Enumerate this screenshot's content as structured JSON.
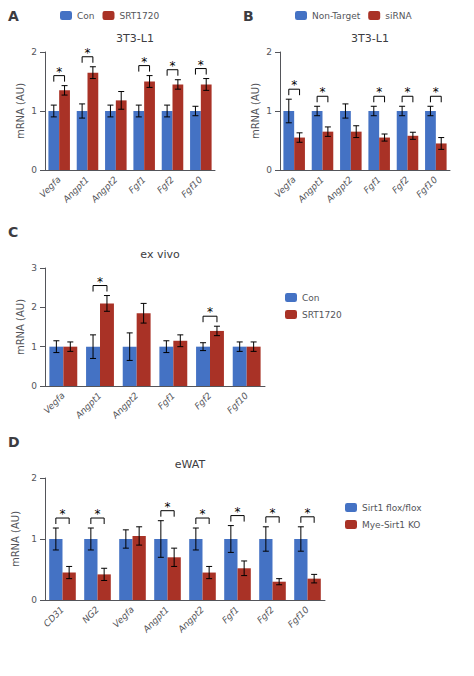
{
  "chart_data": [
    {
      "type": "bar",
      "panel": "A",
      "title": "3T3-L1",
      "categories": [
        "Vegfa",
        "Angpt1",
        "Angpt2",
        "Fgf1",
        "Fgf2",
        "Fgf10"
      ],
      "series": [
        {
          "name": "Con",
          "color": "#4472C4",
          "values": [
            1.0,
            1.0,
            1.0,
            1.0,
            1.0,
            1.0
          ],
          "errors": [
            0.1,
            0.12,
            0.1,
            0.1,
            0.1,
            0.08
          ]
        },
        {
          "name": "SRT1720",
          "color": "#A93226",
          "values": [
            1.35,
            1.65,
            1.18,
            1.5,
            1.45,
            1.45
          ],
          "errors": [
            0.08,
            0.1,
            0.15,
            0.1,
            0.08,
            0.1
          ]
        }
      ],
      "ylim": [
        0,
        2
      ],
      "yticks": [
        0,
        1,
        2
      ],
      "ylabel": "mRNA (AU)",
      "annotations": [
        {
          "category": "Vegfa",
          "text": "*"
        },
        {
          "category": "Angpt1",
          "text": "*"
        },
        {
          "category": "Fgf1",
          "text": "*"
        },
        {
          "category": "Fgf2",
          "text": "*"
        },
        {
          "category": "Fgf10",
          "text": "*"
        }
      ],
      "grid": false,
      "legend": "top"
    },
    {
      "type": "bar",
      "panel": "B",
      "title": "3T3-L1",
      "categories": [
        "Vegfa",
        "Angpt1",
        "Angpt2",
        "Fgf1",
        "Fgf2",
        "Fgf10"
      ],
      "series": [
        {
          "name": "Non-Target",
          "color": "#4472C4",
          "values": [
            1.0,
            1.0,
            1.0,
            1.0,
            1.0,
            1.0
          ],
          "errors": [
            0.2,
            0.08,
            0.12,
            0.08,
            0.08,
            0.08
          ]
        },
        {
          "name": "siRNA",
          "color": "#A93226",
          "values": [
            0.55,
            0.65,
            0.65,
            0.55,
            0.58,
            0.45
          ],
          "errors": [
            0.08,
            0.08,
            0.1,
            0.06,
            0.06,
            0.1
          ]
        }
      ],
      "ylim": [
        0,
        2
      ],
      "yticks": [
        0,
        1,
        2
      ],
      "ylabel": "mRNA (AU)",
      "annotations": [
        {
          "category": "Vegfa",
          "text": "*"
        },
        {
          "category": "Angpt1",
          "text": "*"
        },
        {
          "category": "Fgf1",
          "text": "*"
        },
        {
          "category": "Fgf2",
          "text": "*"
        },
        {
          "category": "Fgf10",
          "text": "*"
        }
      ],
      "grid": false,
      "legend": "top"
    },
    {
      "type": "bar",
      "panel": "C",
      "title": "ex vivo",
      "categories": [
        "Vegfa",
        "Angpt1",
        "Angpt2",
        "Fgf1",
        "Fgf2",
        "Fgf10"
      ],
      "series": [
        {
          "name": "Con",
          "color": "#4472C4",
          "values": [
            1.0,
            1.0,
            1.0,
            1.0,
            1.0,
            1.0
          ],
          "errors": [
            0.15,
            0.3,
            0.35,
            0.15,
            0.1,
            0.12
          ]
        },
        {
          "name": "SRT1720",
          "color": "#A93226",
          "values": [
            1.0,
            2.1,
            1.85,
            1.15,
            1.4,
            1.0
          ],
          "errors": [
            0.12,
            0.2,
            0.25,
            0.15,
            0.12,
            0.12
          ]
        }
      ],
      "ylim": [
        0,
        3
      ],
      "yticks": [
        0,
        1,
        2,
        3
      ],
      "ylabel": "mRNA (AU)",
      "annotations": [
        {
          "category": "Angpt1",
          "text": "*"
        },
        {
          "category": "Fgf2",
          "text": "*"
        }
      ],
      "grid": false,
      "legend": "right"
    },
    {
      "type": "bar",
      "panel": "D",
      "title": "eWAT",
      "categories": [
        "CD31",
        "NG2",
        "Vegfa",
        "Angpt1",
        "Angpt2",
        "Fgf1",
        "Fgf2",
        "Fgf10"
      ],
      "series": [
        {
          "name": "Sirt1 flox/flox",
          "color": "#4472C4",
          "values": [
            1.0,
            1.0,
            1.0,
            1.0,
            1.0,
            1.0,
            1.0,
            1.0
          ],
          "errors": [
            0.18,
            0.18,
            0.15,
            0.3,
            0.18,
            0.22,
            0.2,
            0.2
          ]
        },
        {
          "name": "Mye-Sirt1 KO",
          "color": "#A93226",
          "values": [
            0.45,
            0.42,
            1.05,
            0.7,
            0.45,
            0.52,
            0.3,
            0.35
          ],
          "errors": [
            0.1,
            0.1,
            0.15,
            0.15,
            0.1,
            0.12,
            0.05,
            0.07
          ]
        }
      ],
      "ylim": [
        0,
        2
      ],
      "yticks": [
        0,
        1,
        2
      ],
      "ylabel": "mRNA (AU)",
      "annotations": [
        {
          "category": "CD31",
          "text": "*"
        },
        {
          "category": "NG2",
          "text": "*"
        },
        {
          "category": "Angpt1",
          "text": "*"
        },
        {
          "category": "Angpt2",
          "text": "*"
        },
        {
          "category": "Fgf1",
          "text": "*"
        },
        {
          "category": "Fgf2",
          "text": "*"
        },
        {
          "category": "Fgf10",
          "text": "*"
        }
      ],
      "grid": false,
      "legend": "right"
    }
  ]
}
